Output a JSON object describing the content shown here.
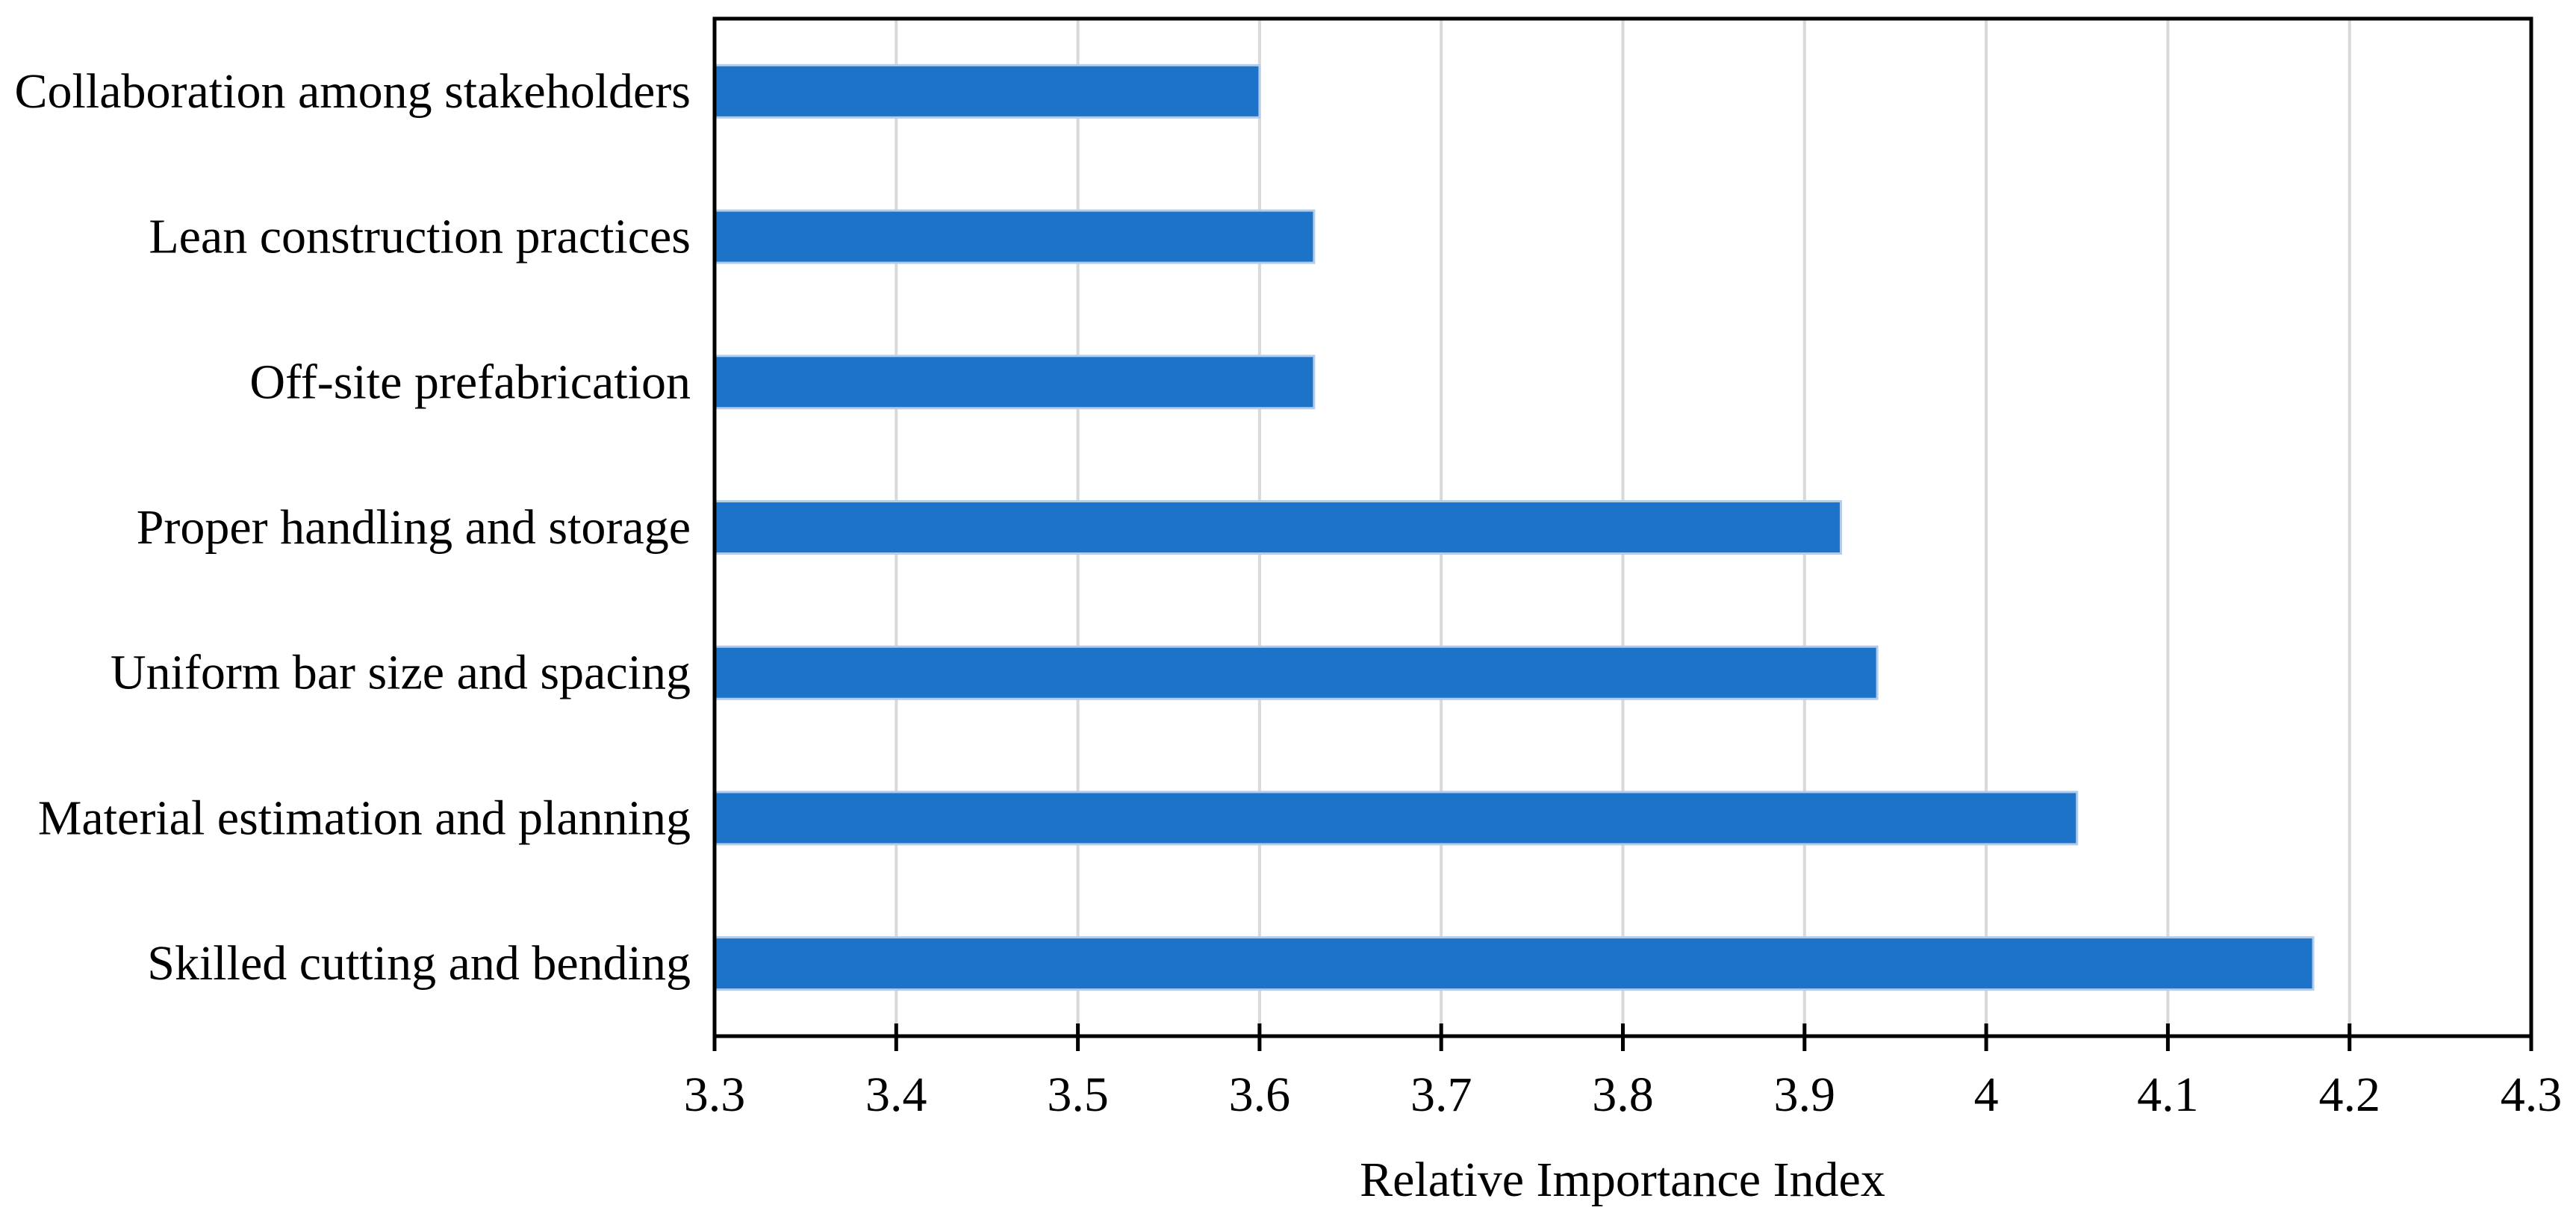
{
  "chart_data": {
    "type": "bar",
    "orientation": "horizontal",
    "title": "",
    "xlabel": "Relative Importance Index",
    "ylabel": "",
    "categories": [
      "Collaboration among stakeholders",
      "Lean construction practices",
      "Off-site prefabrication",
      "Proper handling and storage",
      "Uniform bar size and spacing",
      "Material estimation and planning",
      "Skilled cutting and bending"
    ],
    "values": [
      3.6,
      3.63,
      3.63,
      3.92,
      3.94,
      4.05,
      4.18
    ],
    "xlim": [
      3.3,
      4.3
    ],
    "xticks": [
      3.3,
      3.4,
      3.5,
      3.6,
      3.7,
      3.8,
      3.9,
      4.0,
      4.1,
      4.2,
      4.3
    ],
    "xtick_labels": [
      "3.3",
      "3.4",
      "3.5",
      "3.6",
      "3.7",
      "3.8",
      "3.9",
      "4",
      "4.1",
      "4.2",
      "4.3"
    ],
    "grid": true,
    "legend": false,
    "colors": {
      "bar_fill": "#1C73C8",
      "bar_border": "#B3CCEA",
      "gridline": "#D9D9D9",
      "axis": "#000000",
      "text": "#000000",
      "background": "#FFFFFF"
    }
  }
}
